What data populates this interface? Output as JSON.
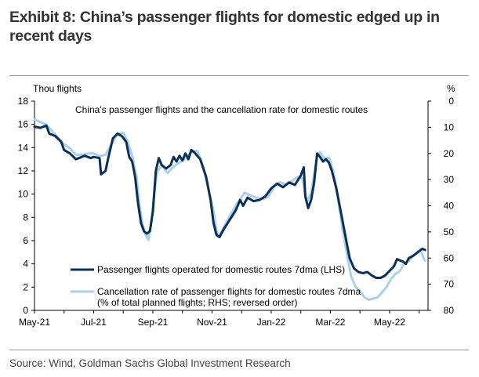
{
  "exhibit_title": "Exhibit 8: China’s passenger flights for domestic edged up in recent days",
  "source": "Source: Wind, Goldman Sachs Global Investment Research",
  "colors": {
    "dark_series": "#0b2f56",
    "light_series": "#a9cfe9",
    "axis": "#000000"
  },
  "chart_data": {
    "type": "line",
    "title": "China's passenger flights and the cancellation rate for domestic routes",
    "left_axis": {
      "label": "Thou flights",
      "range": [
        0,
        18
      ],
      "ticks": [
        "0",
        "2",
        "4",
        "6",
        "8",
        "10",
        "12",
        "14",
        "16",
        "18"
      ]
    },
    "right_axis": {
      "label": "%",
      "range": [
        0,
        80
      ],
      "reversed": true,
      "ticks": [
        "0",
        "10",
        "20",
        "30",
        "40",
        "50",
        "60",
        "70",
        "80"
      ]
    },
    "x_axis": {
      "range_months": [
        0,
        13.3
      ],
      "ticks": [
        "May-21",
        "Jul-21",
        "Sep-21",
        "Nov-21",
        "Jan-22",
        "Mar-22",
        "May-22"
      ],
      "tick_positions_months": [
        0,
        2,
        4,
        6,
        8,
        10,
        12
      ]
    },
    "legend_position": "bottom-center",
    "series": [
      {
        "name": "Passenger flights operated for domestic routes 7dma (LHS)",
        "axis": "left",
        "points": [
          [
            0,
            15.8
          ],
          [
            0.2,
            15.7
          ],
          [
            0.4,
            15.9
          ],
          [
            0.5,
            15.2
          ],
          [
            0.7,
            15.0
          ],
          [
            0.9,
            14.5
          ],
          [
            1.0,
            13.8
          ],
          [
            1.2,
            13.5
          ],
          [
            1.4,
            13.0
          ],
          [
            1.5,
            13.1
          ],
          [
            1.7,
            13.3
          ],
          [
            1.9,
            13.1
          ],
          [
            2.0,
            13.2
          ],
          [
            2.2,
            13.1
          ],
          [
            2.25,
            11.7
          ],
          [
            2.4,
            12.0
          ],
          [
            2.5,
            13.2
          ],
          [
            2.65,
            14.8
          ],
          [
            2.8,
            15.2
          ],
          [
            2.95,
            15.0
          ],
          [
            3.1,
            14.5
          ],
          [
            3.2,
            13.2
          ],
          [
            3.3,
            12.8
          ],
          [
            3.4,
            11.5
          ],
          [
            3.5,
            9.2
          ],
          [
            3.6,
            7.5
          ],
          [
            3.7,
            6.8
          ],
          [
            3.8,
            6.6
          ],
          [
            3.9,
            6.8
          ],
          [
            4.0,
            8.5
          ],
          [
            4.1,
            12.0
          ],
          [
            4.2,
            13.1
          ],
          [
            4.3,
            12.5
          ],
          [
            4.45,
            12.2
          ],
          [
            4.6,
            12.5
          ],
          [
            4.7,
            13.2
          ],
          [
            4.8,
            12.8
          ],
          [
            4.9,
            13.3
          ],
          [
            5.0,
            12.9
          ],
          [
            5.1,
            13.5
          ],
          [
            5.2,
            13.0
          ],
          [
            5.3,
            13.8
          ],
          [
            5.4,
            13.6
          ],
          [
            5.6,
            13.0
          ],
          [
            5.8,
            11.5
          ],
          [
            5.95,
            9.5
          ],
          [
            6.05,
            7.5
          ],
          [
            6.15,
            6.5
          ],
          [
            6.25,
            6.3
          ],
          [
            6.4,
            7.0
          ],
          [
            6.6,
            7.8
          ],
          [
            6.8,
            8.6
          ],
          [
            6.95,
            9.5
          ],
          [
            7.05,
            9.0
          ],
          [
            7.2,
            9.7
          ],
          [
            7.4,
            9.4
          ],
          [
            7.6,
            9.5
          ],
          [
            7.8,
            9.8
          ],
          [
            8.0,
            10.5
          ],
          [
            8.2,
            10.9
          ],
          [
            8.4,
            10.6
          ],
          [
            8.6,
            11.0
          ],
          [
            8.8,
            10.8
          ],
          [
            9.0,
            11.6
          ],
          [
            9.1,
            12.3
          ],
          [
            9.15,
            9.8
          ],
          [
            9.25,
            8.8
          ],
          [
            9.35,
            9.5
          ],
          [
            9.45,
            11.0
          ],
          [
            9.55,
            13.5
          ],
          [
            9.65,
            13.2
          ],
          [
            9.75,
            12.8
          ],
          [
            9.85,
            13.0
          ],
          [
            9.95,
            12.7
          ],
          [
            10.05,
            12.0
          ],
          [
            10.2,
            10.5
          ],
          [
            10.35,
            8.5
          ],
          [
            10.5,
            6.5
          ],
          [
            10.65,
            4.5
          ],
          [
            10.8,
            3.6
          ],
          [
            10.95,
            3.3
          ],
          [
            11.1,
            3.2
          ],
          [
            11.25,
            3.3
          ],
          [
            11.4,
            3.0
          ],
          [
            11.55,
            2.8
          ],
          [
            11.7,
            2.8
          ],
          [
            11.85,
            3.0
          ],
          [
            12.0,
            3.4
          ],
          [
            12.15,
            3.8
          ],
          [
            12.25,
            4.4
          ],
          [
            12.35,
            4.3
          ],
          [
            12.45,
            4.2
          ],
          [
            12.55,
            4.0
          ],
          [
            12.65,
            4.5
          ],
          [
            12.8,
            4.7
          ],
          [
            12.95,
            5.0
          ],
          [
            13.1,
            5.3
          ],
          [
            13.2,
            5.2
          ]
        ]
      },
      {
        "name": "Cancellation rate of passenger flights for domestic routes 7dma (% of total planned flights; RHS; reversed order)",
        "name_lines": [
          "Cancellation rate of passenger flights for domestic routes 7dma",
          "(% of total planned flights; RHS; reversed order)"
        ],
        "axis": "right",
        "points": [
          [
            0,
            7.0
          ],
          [
            0.2,
            8.0
          ],
          [
            0.4,
            9.0
          ],
          [
            0.6,
            11.5
          ],
          [
            0.8,
            14.0
          ],
          [
            1.0,
            16.5
          ],
          [
            1.2,
            18.0
          ],
          [
            1.4,
            20.5
          ],
          [
            1.6,
            20.5
          ],
          [
            1.8,
            20.0
          ],
          [
            2.0,
            20.0
          ],
          [
            2.2,
            21.0
          ],
          [
            2.4,
            20.5
          ],
          [
            2.6,
            16.5
          ],
          [
            2.8,
            12.5
          ],
          [
            3.0,
            12.0
          ],
          [
            3.15,
            15.5
          ],
          [
            3.3,
            21.0
          ],
          [
            3.45,
            29.0
          ],
          [
            3.55,
            40.0
          ],
          [
            3.65,
            47.0
          ],
          [
            3.75,
            51.0
          ],
          [
            3.85,
            53.0
          ],
          [
            3.95,
            46.0
          ],
          [
            4.05,
            35.0
          ],
          [
            4.15,
            27.0
          ],
          [
            4.3,
            24.5
          ],
          [
            4.5,
            27.5
          ],
          [
            4.7,
            25.0
          ],
          [
            4.9,
            23.5
          ],
          [
            5.1,
            22.0
          ],
          [
            5.3,
            19.5
          ],
          [
            5.5,
            19.0
          ],
          [
            5.7,
            25.0
          ],
          [
            5.9,
            35.0
          ],
          [
            6.05,
            42.0
          ],
          [
            6.15,
            49.5
          ],
          [
            6.25,
            51.5
          ],
          [
            6.4,
            48.0
          ],
          [
            6.6,
            44.0
          ],
          [
            6.8,
            40.0
          ],
          [
            6.95,
            37.5
          ],
          [
            7.1,
            35.0
          ],
          [
            7.3,
            36.0
          ],
          [
            7.5,
            37.0
          ],
          [
            7.7,
            37.5
          ],
          [
            7.9,
            36.5
          ],
          [
            8.1,
            32.5
          ],
          [
            8.3,
            31.0
          ],
          [
            8.5,
            32.0
          ],
          [
            8.7,
            30.5
          ],
          [
            8.9,
            29.0
          ],
          [
            9.05,
            29.5
          ],
          [
            9.2,
            38.5
          ],
          [
            9.35,
            35.0
          ],
          [
            9.45,
            28.0
          ],
          [
            9.55,
            21.0
          ],
          [
            9.65,
            19.5
          ],
          [
            9.8,
            22.0
          ],
          [
            9.95,
            21.5
          ],
          [
            10.1,
            27.0
          ],
          [
            10.25,
            37.0
          ],
          [
            10.4,
            48.0
          ],
          [
            10.55,
            58.0
          ],
          [
            10.7,
            67.0
          ],
          [
            10.85,
            71.0
          ],
          [
            11.0,
            72.5
          ],
          [
            11.15,
            75.0
          ],
          [
            11.3,
            76.0
          ],
          [
            11.45,
            75.5
          ],
          [
            11.6,
            75.0
          ],
          [
            11.75,
            73.0
          ],
          [
            11.9,
            71.0
          ],
          [
            12.05,
            68.0
          ],
          [
            12.2,
            66.0
          ],
          [
            12.35,
            65.0
          ],
          [
            12.5,
            62.0
          ],
          [
            12.65,
            61.0
          ],
          [
            12.8,
            59.0
          ],
          [
            12.95,
            58.0
          ],
          [
            13.05,
            57.0
          ],
          [
            13.15,
            60.0
          ],
          [
            13.2,
            61.0
          ]
        ]
      }
    ]
  }
}
